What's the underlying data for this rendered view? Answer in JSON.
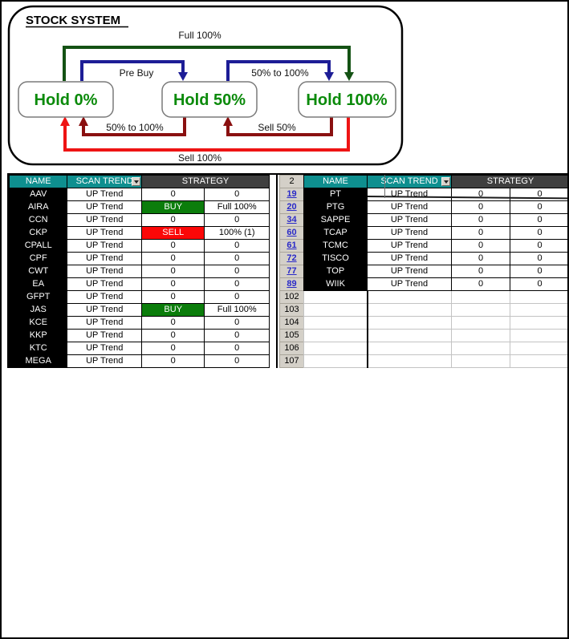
{
  "diagram": {
    "title": "STOCK SYSTEM",
    "states": {
      "s0": "Hold 0%",
      "s50": "Hold 50%",
      "s100": "Hold 100%"
    },
    "labels": {
      "full_100": "Full 100%",
      "pre_buy": "Pre Buy",
      "fifty_to_100_top": "50% to 100%",
      "fifty_to_100_bottom": "50% to 100%",
      "sell_50": "Sell 50%",
      "sell_100": "Sell 100%"
    },
    "colors": {
      "buy_full_arrow": "#145214",
      "buy_step_arrow": "#1d1d96",
      "sell_step_arrow": "#8a1010",
      "sell_full_arrow": "#ee1414",
      "state_text": "#0a8a0a"
    }
  },
  "tables": {
    "headers": {
      "name": "NAME",
      "scan_trend": "SCAN TREND",
      "strategy": "STRATEGY"
    },
    "header_colors": {
      "teal": "#0e8f8f",
      "dark": "#3f3f3f"
    },
    "signal_colors": {
      "buy": "#0b7d0b",
      "sell": "#fb0707"
    },
    "left_rows": [
      {
        "name": "AAV",
        "trend": "UP Trend",
        "s1": "0",
        "s2": "0"
      },
      {
        "name": "AIRA",
        "trend": "UP Trend",
        "s1": "BUY",
        "s2": "Full 100%"
      },
      {
        "name": "CCN",
        "trend": "UP Trend",
        "s1": "0",
        "s2": "0"
      },
      {
        "name": "CKP",
        "trend": "UP Trend",
        "s1": "SELL",
        "s2": "100% (1)"
      },
      {
        "name": "CPALL",
        "trend": "UP Trend",
        "s1": "0",
        "s2": "0"
      },
      {
        "name": "CPF",
        "trend": "UP Trend",
        "s1": "0",
        "s2": "0"
      },
      {
        "name": "CWT",
        "trend": "UP Trend",
        "s1": "0",
        "s2": "0"
      },
      {
        "name": "EA",
        "trend": "UP Trend",
        "s1": "0",
        "s2": "0"
      },
      {
        "name": "GFPT",
        "trend": "UP Trend",
        "s1": "0",
        "s2": "0"
      },
      {
        "name": "JAS",
        "trend": "UP Trend",
        "s1": "BUY",
        "s2": "Full 100%"
      },
      {
        "name": "KCE",
        "trend": "UP Trend",
        "s1": "0",
        "s2": "0"
      },
      {
        "name": "KKP",
        "trend": "UP Trend",
        "s1": "0",
        "s2": "0"
      },
      {
        "name": "KTC",
        "trend": "UP Trend",
        "s1": "0",
        "s2": "0"
      },
      {
        "name": "MEGA",
        "trend": "UP Trend",
        "s1": "0",
        "s2": "0"
      }
    ],
    "right_rows": [
      {
        "name": "PT",
        "trend": "UP Trend",
        "s1": "0",
        "s2": "0"
      },
      {
        "name": "PTG",
        "trend": "UP Trend",
        "s1": "0",
        "s2": "0"
      },
      {
        "name": "SAPPE",
        "trend": "UP Trend",
        "s1": "0",
        "s2": "0"
      },
      {
        "name": "TCAP",
        "trend": "UP Trend",
        "s1": "0",
        "s2": "0"
      },
      {
        "name": "TCMC",
        "trend": "UP Trend",
        "s1": "0",
        "s2": "0"
      },
      {
        "name": "TISCO",
        "trend": "UP Trend",
        "s1": "0",
        "s2": "0"
      },
      {
        "name": "TOP",
        "trend": "UP Trend",
        "s1": "0",
        "s2": "0"
      },
      {
        "name": "WIIK",
        "trend": "UP Trend",
        "s1": "0",
        "s2": "0"
      }
    ],
    "right_empty_row_count": 6,
    "gutter": [
      {
        "label": "2",
        "style": "plain"
      },
      {
        "label": "19",
        "style": "link"
      },
      {
        "label": "20",
        "style": "link"
      },
      {
        "label": "34",
        "style": "link"
      },
      {
        "label": "60",
        "style": "link"
      },
      {
        "label": "61",
        "style": "link"
      },
      {
        "label": "72",
        "style": "link"
      },
      {
        "label": "77",
        "style": "link"
      },
      {
        "label": "89",
        "style": "link"
      },
      {
        "label": "102",
        "style": "plain"
      },
      {
        "label": "103",
        "style": "plain"
      },
      {
        "label": "104",
        "style": "plain"
      },
      {
        "label": "105",
        "style": "plain"
      },
      {
        "label": "106",
        "style": "plain"
      },
      {
        "label": "107",
        "style": "plain"
      }
    ]
  }
}
